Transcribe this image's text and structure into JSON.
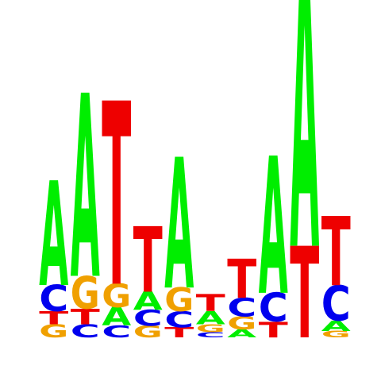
{
  "chart_data": {
    "type": "sequence-logo",
    "title": "",
    "xlabel": "",
    "ylabel": "",
    "colors": {
      "A": "#00ee00",
      "C": "#0000ee",
      "G": "#f0a000",
      "T": "#ee0000"
    },
    "positions": [
      {
        "position": 1,
        "letters": [
          {
            "base": "G",
            "height": 0.1
          },
          {
            "base": "T",
            "height": 0.1
          },
          {
            "base": "C",
            "height": 0.2
          },
          {
            "base": "A",
            "height": 0.8
          }
        ]
      },
      {
        "position": 2,
        "letters": [
          {
            "base": "C",
            "height": 0.1
          },
          {
            "base": "T",
            "height": 0.12
          },
          {
            "base": "G",
            "height": 0.25
          },
          {
            "base": "A",
            "height": 1.4
          }
        ]
      },
      {
        "position": 3,
        "letters": [
          {
            "base": "C",
            "height": 0.09
          },
          {
            "base": "A",
            "height": 0.14
          },
          {
            "base": "G",
            "height": 0.18
          },
          {
            "base": "T",
            "height": 1.4
          }
        ]
      },
      {
        "position": 4,
        "letters": [
          {
            "base": "G",
            "height": 0.09
          },
          {
            "base": "C",
            "height": 0.12
          },
          {
            "base": "A",
            "height": 0.14
          },
          {
            "base": "T",
            "height": 0.5
          }
        ]
      },
      {
        "position": 5,
        "letters": [
          {
            "base": "T",
            "height": 0.08
          },
          {
            "base": "C",
            "height": 0.12
          },
          {
            "base": "G",
            "height": 0.18
          },
          {
            "base": "A",
            "height": 1.0
          }
        ]
      },
      {
        "position": 6,
        "letters": [
          {
            "base": "C",
            "height": 0.04
          },
          {
            "base": "G",
            "height": 0.06
          },
          {
            "base": "A",
            "height": 0.1
          },
          {
            "base": "T",
            "height": 0.13
          }
        ]
      },
      {
        "position": 7,
        "letters": [
          {
            "base": "A",
            "height": 0.06
          },
          {
            "base": "G",
            "height": 0.1
          },
          {
            "base": "C",
            "height": 0.14
          },
          {
            "base": "T",
            "height": 0.3
          }
        ]
      },
      {
        "position": 8,
        "letters": [
          {
            "base": "T",
            "height": 0.12
          },
          {
            "base": "C",
            "height": 0.22
          },
          {
            "base": "A",
            "height": 1.05
          }
        ]
      },
      {
        "position": 9,
        "letters": [
          {
            "base": "T",
            "height": 0.7
          },
          {
            "base": "A",
            "height": 2.2
          }
        ]
      },
      {
        "position": 10,
        "letters": [
          {
            "base": "G",
            "height": 0.05
          },
          {
            "base": "A",
            "height": 0.08
          },
          {
            "base": "C",
            "height": 0.27
          },
          {
            "base": "T",
            "height": 0.53
          }
        ]
      }
    ]
  }
}
